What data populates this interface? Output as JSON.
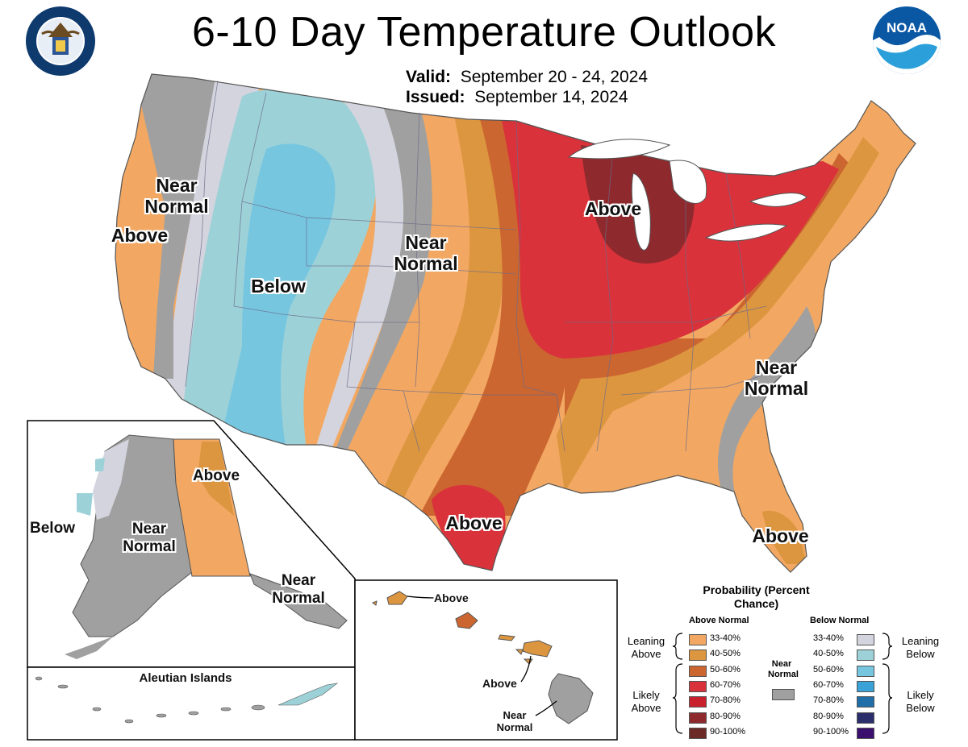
{
  "header": {
    "title": "6-10 Day Temperature Outlook",
    "valid_label": "Valid:",
    "valid_value": "September 20 - 24, 2024",
    "issued_label": "Issued:",
    "issued_value": "September 14, 2024"
  },
  "logos": {
    "left": "department-of-commerce-seal",
    "left_text": "DEPARTMENT OF COMMERCE · UNITED STATES OF AMERICA",
    "right": "noaa-logo",
    "right_text": "NOAA"
  },
  "map_labels": {
    "west_near_normal": "Near Normal",
    "west_above": "Above",
    "west_below": "Below",
    "plains_near_normal": "Near Normal",
    "midwest_above": "Above",
    "southeast_near_normal": "Near Normal",
    "texas_above": "Above",
    "florida_above": "Above"
  },
  "alaska_labels": {
    "above": "Above",
    "below": "Below",
    "near_normal_main": "Near Normal",
    "near_normal_panhandle": "Near Normal",
    "aleutian_title": "Aleutian Islands"
  },
  "hawaii_labels": {
    "above_kauai": "Above",
    "above_maui": "Above",
    "near_normal_big_island": "Near Normal"
  },
  "legend": {
    "title": "Probability (Percent Chance)",
    "above_header": "Above Normal",
    "below_header": "Below Normal",
    "near_header": "Near Normal",
    "leaning_above": "Leaning Above",
    "likely_above": "Likely Above",
    "leaning_below": "Leaning Below",
    "likely_below": "Likely Below",
    "above_rows": [
      {
        "range": "33-40%",
        "color": "#f2a862"
      },
      {
        "range": "40-50%",
        "color": "#dd9640"
      },
      {
        "range": "50-60%",
        "color": "#cc6630"
      },
      {
        "range": "60-70%",
        "color": "#d9323a"
      },
      {
        "range": "70-80%",
        "color": "#c8202c"
      },
      {
        "range": "80-90%",
        "color": "#8e2a2e"
      },
      {
        "range": "90-100%",
        "color": "#6b2a26"
      }
    ],
    "below_rows": [
      {
        "range": "33-40%",
        "color": "#d4d4de"
      },
      {
        "range": "40-50%",
        "color": "#9dd1d8"
      },
      {
        "range": "50-60%",
        "color": "#76c6e0"
      },
      {
        "range": "60-70%",
        "color": "#3aa2d6"
      },
      {
        "range": "70-80%",
        "color": "#1f6ea8"
      },
      {
        "range": "80-90%",
        "color": "#2a2e6a"
      },
      {
        "range": "90-100%",
        "color": "#3a0f6e"
      }
    ],
    "near_color": "#a0a0a0"
  },
  "colors": {
    "near_normal": "#a0a0a0",
    "lean_below": "#d4d4de",
    "below_40_50": "#9dd1d8",
    "below_50_60": "#76c6e0",
    "above_33_40": "#f2a862",
    "above_40_50": "#dd9640",
    "above_50_60": "#cc6630",
    "above_60_70": "#d9323a",
    "above_80_90": "#8e2a2e"
  }
}
